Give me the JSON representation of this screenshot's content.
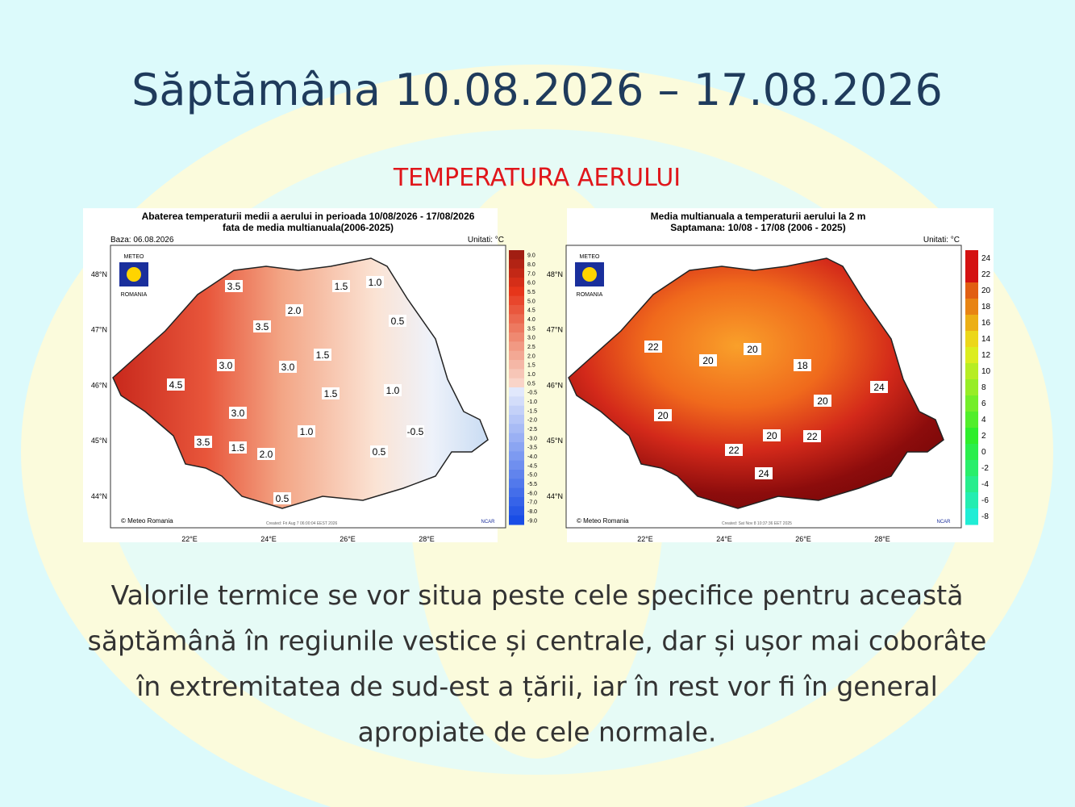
{
  "header": {
    "title": "Săptămâna 10.08.2026 – 17.08.2026",
    "subtitle": "TEMPERATURA AERULUI"
  },
  "maps": [
    {
      "title_lines": [
        "Abaterea temperaturii medii a aerului in perioada 10/08/2026 - 17/08/2026",
        "fata de media multianuala(2006-2025)"
      ],
      "base": "Baza: 06.08.2026",
      "units": "Unitati: °C",
      "logo": [
        "METEO",
        "ROMANIA"
      ],
      "lat_labels": [
        "48°N",
        "47°N",
        "46°N",
        "45°N",
        "44°N"
      ],
      "lon_labels": [
        "22°E",
        "24°E",
        "26°E",
        "28°E"
      ],
      "colorbar": [
        "9.0",
        "8.0",
        "7.0",
        "6.0",
        "5.5",
        "5.0",
        "4.5",
        "4.0",
        "3.5",
        "3.0",
        "2.5",
        "2.0",
        "1.5",
        "1.0",
        "0.5",
        "-0.5",
        "-1.0",
        "-1.5",
        "-2.0",
        "-2.5",
        "-3.0",
        "-3.5",
        "-4.0",
        "-4.5",
        "-5.0",
        "-5.5",
        "-6.0",
        "-7.0",
        "-8.0",
        "-9.0"
      ],
      "contour_labels": [
        "3.5",
        "1.5",
        "1.0",
        "3.5",
        "2.0",
        "0.5",
        "3.0",
        "3.0",
        "1.5",
        "4.5",
        "1.5",
        "1.0",
        "3.0",
        "1.0",
        "0.5",
        "-0.5",
        "3.5",
        "1.5",
        "2.0",
        "0.5"
      ],
      "credit": "© Meteo Romania",
      "created": "Created: Fri Aug  7 06:00:04 EEST 2026",
      "ncar": "NCAR"
    },
    {
      "title_lines": [
        "Media multianuala a temperaturii aerului la 2 m",
        "Saptamana: 10/08 - 17/08 (2006 - 2025)"
      ],
      "units": "Unitati: °C",
      "logo": [
        "METEO",
        "ROMANIA"
      ],
      "lat_labels": [
        "48°N",
        "47°N",
        "46°N",
        "45°N",
        "44°N"
      ],
      "lon_labels": [
        "22°E",
        "24°E",
        "26°E",
        "28°E"
      ],
      "colorbar": [
        "24",
        "22",
        "20",
        "18",
        "16",
        "14",
        "12",
        "10",
        "8",
        "6",
        "4",
        "2",
        "0",
        "-2",
        "-4",
        "-6",
        "-8"
      ],
      "contour_labels": [
        "22",
        "20",
        "20",
        "18",
        "20",
        "24",
        "20",
        "20",
        "22",
        "22",
        "24"
      ],
      "credit": "© Meteo Romania",
      "created": "Created: Sat Nov  8 10:37:36 EET 2025",
      "ncar": "NCAR"
    }
  ],
  "body": {
    "lines": [
      "Valorile termice se vor situa peste cele specifice pentru această",
      "săptămână în regiunile vestice și centrale, dar și ușor mai coborâte",
      "în extremitatea de sud-est a țării, iar în rest vor fi în general",
      "apropiate de cele normale."
    ]
  }
}
